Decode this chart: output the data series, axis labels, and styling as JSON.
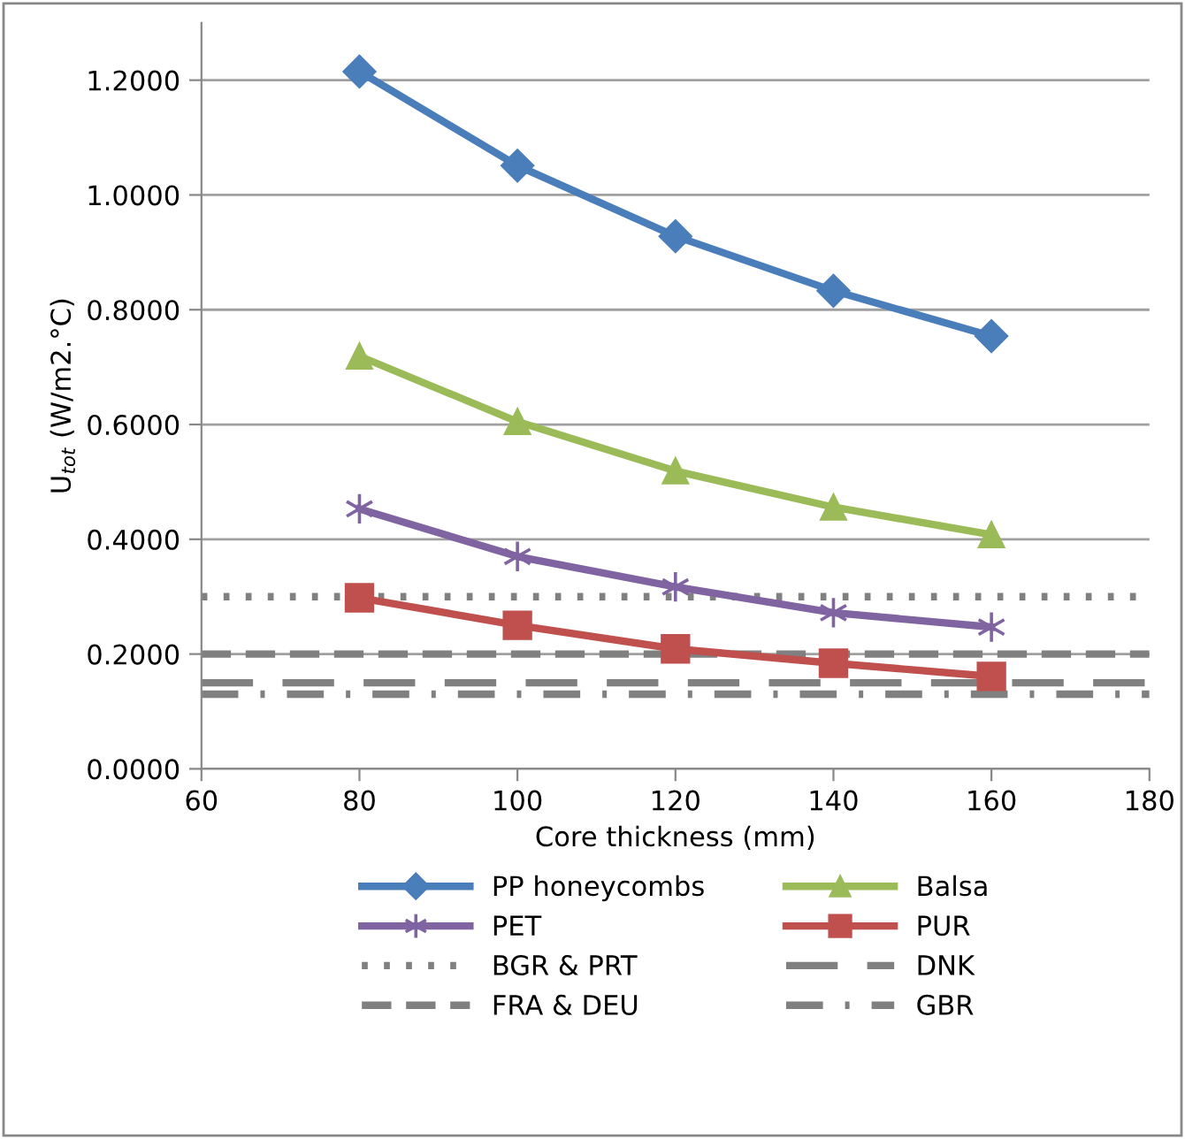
{
  "chart_data": {
    "type": "line",
    "xlabel": "Core thickness (mm)",
    "ylabel": "U$_{tot}$ (W/m2.°C)",
    "x": [
      80,
      100,
      120,
      140,
      160
    ],
    "xlim": [
      60,
      180
    ],
    "xticks": [
      60,
      80,
      100,
      120,
      140,
      160,
      180
    ],
    "ylim": [
      0,
      1.3
    ],
    "yticks": [
      {
        "value": 0,
        "label": "0.0000"
      },
      {
        "value": 0.2,
        "label": "0.2000"
      },
      {
        "value": 0.4,
        "label": "0.4000"
      },
      {
        "value": 0.6,
        "label": "0.6000"
      },
      {
        "value": 0.8,
        "label": "0.8000"
      },
      {
        "value": 1.0,
        "label": "1.0000"
      },
      {
        "value": 1.2,
        "label": "1.2000"
      }
    ],
    "grid": "y",
    "legend": "bottom",
    "line_style": "solid",
    "series": [
      {
        "name": "PP honeycombs",
        "color": "#4a7ebb",
        "marker": "diamond",
        "values": [
          1.215,
          1.051,
          0.928,
          0.833,
          0.754
        ]
      },
      {
        "name": "Balsa",
        "color": "#9bbb59",
        "marker": "triangle",
        "values": [
          0.719,
          0.605,
          0.519,
          0.456,
          0.408
        ]
      },
      {
        "name": "PET",
        "color": "#8064a2",
        "marker": "cross",
        "values": [
          0.453,
          0.37,
          0.317,
          0.272,
          0.247
        ]
      },
      {
        "name": "PUR",
        "color": "#c0504d",
        "marker": "square",
        "values": [
          0.298,
          0.25,
          0.209,
          0.184,
          0.161
        ]
      }
    ],
    "ref_lines": [
      {
        "axis": "y",
        "value": 0.3,
        "label": "BGR & PRT",
        "color": "#808080",
        "line_style": "dotted"
      },
      {
        "axis": "y",
        "value": 0.15,
        "label": "DNK",
        "color": "#808080",
        "line_style": "longdash"
      },
      {
        "axis": "y",
        "value": 0.2,
        "label": "FRA & DEU",
        "color": "#808080",
        "line_style": "dashed"
      },
      {
        "axis": "y",
        "value": 0.13,
        "label": "GBR",
        "color": "#808080",
        "line_style": "dashdot"
      }
    ]
  }
}
